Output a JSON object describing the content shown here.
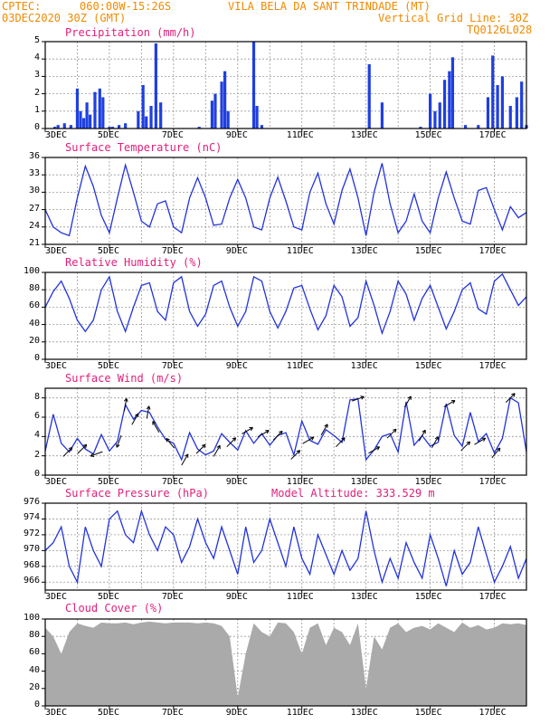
{
  "header": {
    "line1_left": "CPTEC:",
    "line1_coords": "060:00W-15:26S",
    "line1_place": "VILA BELA DA SANT TRINDADE (MT)",
    "line2_left": "03DEC2020 30Z (GMT)",
    "line2_right": "Vertical Grid Line: 30Z",
    "line3_right": "TQ0126L028"
  },
  "x_tick_labels": [
    "3DEC",
    "5DEC",
    "7DEC",
    "9DEC",
    "11DEC",
    "13DEC",
    "15DEC",
    "17DEC"
  ],
  "model_altitude": "Model Altitude: 333.529 m",
  "colors": {
    "line": "#2233dd",
    "bar": "#1f3fe0",
    "cloud": "#aaaaaa",
    "header": "#f08a00",
    "title": "#e0207a"
  },
  "chart_data": [
    {
      "type": "bar",
      "title": "Precipitation (mm/h)",
      "ylim": [
        0,
        5
      ],
      "yticks": [
        0,
        1,
        2,
        3,
        4,
        5
      ],
      "grid": true,
      "x": [
        3.3,
        3.4,
        3.6,
        3.8,
        4.0,
        4.1,
        4.2,
        4.3,
        4.4,
        4.55,
        4.7,
        4.8,
        5.0,
        5.1,
        5.3,
        5.5,
        5.9,
        6.05,
        6.15,
        6.3,
        6.45,
        6.6,
        7.8,
        8.2,
        8.3,
        8.5,
        8.6,
        8.7,
        9.5,
        9.6,
        9.75,
        13.1,
        13.5,
        14.7,
        15.0,
        15.15,
        15.3,
        15.45,
        15.6,
        15.7,
        16.1,
        16.5,
        16.8,
        16.95,
        17.1,
        17.25,
        17.5,
        17.7,
        17.85,
        18.0
      ],
      "values": [
        0.1,
        0.2,
        0.3,
        0.2,
        2.3,
        1.0,
        0.6,
        1.5,
        0.8,
        2.1,
        2.3,
        1.8,
        0.1,
        0.1,
        0.2,
        0.3,
        1.0,
        2.5,
        0.7,
        1.3,
        4.9,
        1.5,
        0.1,
        1.6,
        2.0,
        2.7,
        3.3,
        1.0,
        5.0,
        1.3,
        0.2,
        3.7,
        1.5,
        0.1,
        2.0,
        1.0,
        1.5,
        2.8,
        3.3,
        4.1,
        0.2,
        0.2,
        1.8,
        4.2,
        2.5,
        3.0,
        1.3,
        1.8,
        2.7,
        0.2
      ]
    },
    {
      "type": "line",
      "title": "Surface Temperature (nC)",
      "ylim": [
        21,
        36
      ],
      "yticks": [
        21,
        24,
        27,
        30,
        33,
        36
      ],
      "grid": true,
      "x": [
        3.0,
        3.25,
        3.5,
        3.75,
        4.0,
        4.25,
        4.5,
        4.75,
        5.0,
        5.25,
        5.5,
        5.75,
        6.0,
        6.25,
        6.5,
        6.75,
        7.0,
        7.25,
        7.5,
        7.75,
        8.0,
        8.25,
        8.5,
        8.75,
        9.0,
        9.25,
        9.5,
        9.75,
        10.0,
        10.25,
        10.5,
        10.75,
        11.0,
        11.25,
        11.5,
        11.75,
        12.0,
        12.25,
        12.5,
        12.75,
        13.0,
        13.25,
        13.5,
        13.75,
        14.0,
        14.25,
        14.5,
        14.75,
        15.0,
        15.25,
        15.5,
        15.75,
        16.0,
        16.25,
        16.5,
        16.75,
        17.0,
        17.25,
        17.5,
        17.75,
        18.0
      ],
      "values": [
        27,
        24,
        23,
        22.5,
        29,
        34.5,
        31,
        26,
        23,
        29,
        34.7,
        30,
        25,
        24,
        28,
        28.5,
        24,
        23,
        29,
        32.5,
        29,
        24.3,
        24.5,
        29,
        32.2,
        29,
        24,
        23.5,
        29,
        32.6,
        28.5,
        24,
        23.5,
        30,
        33.3,
        28,
        24.5,
        30.3,
        34,
        29,
        22.5,
        30,
        35,
        28,
        23,
        25,
        29.7,
        25,
        23,
        29,
        33.5,
        29,
        25,
        24.5,
        30.3,
        30.8,
        27,
        23.5,
        27.5,
        25.6,
        26.5
      ]
    },
    {
      "type": "line",
      "title": "Relative Humidity (%)",
      "ylim": [
        0,
        100
      ],
      "yticks": [
        0,
        20,
        40,
        60,
        80,
        100
      ],
      "grid": true,
      "x": [
        3.0,
        3.25,
        3.5,
        3.75,
        4.0,
        4.25,
        4.5,
        4.75,
        5.0,
        5.25,
        5.5,
        5.75,
        6.0,
        6.25,
        6.5,
        6.75,
        7.0,
        7.25,
        7.5,
        7.75,
        8.0,
        8.25,
        8.5,
        8.75,
        9.0,
        9.25,
        9.5,
        9.75,
        10.0,
        10.25,
        10.5,
        10.75,
        11.0,
        11.25,
        11.5,
        11.75,
        12.0,
        12.25,
        12.5,
        12.75,
        13.0,
        13.25,
        13.5,
        13.75,
        14.0,
        14.25,
        14.5,
        14.75,
        15.0,
        15.25,
        15.5,
        15.75,
        16.0,
        16.25,
        16.5,
        16.75,
        17.0,
        17.25,
        17.5,
        17.75,
        18.0
      ],
      "values": [
        60,
        78,
        90,
        70,
        45,
        32,
        45,
        80,
        95,
        55,
        32,
        60,
        85,
        88,
        55,
        45,
        88,
        95,
        55,
        38,
        52,
        85,
        90,
        60,
        38,
        55,
        95,
        90,
        55,
        36,
        55,
        82,
        85,
        58,
        34,
        50,
        85,
        72,
        38,
        48,
        90,
        62,
        30,
        55,
        90,
        75,
        45,
        70,
        85,
        60,
        35,
        55,
        80,
        88,
        58,
        52,
        90,
        98,
        80,
        62,
        72
      ]
    },
    {
      "type": "line",
      "title": "Surface Wind (m/s)",
      "ylim": [
        0,
        9
      ],
      "yticks": [
        0,
        2,
        4,
        6,
        8
      ],
      "grid": true,
      "x": [
        3.0,
        3.25,
        3.5,
        3.75,
        4.0,
        4.25,
        4.5,
        4.75,
        5.0,
        5.25,
        5.5,
        5.75,
        6.0,
        6.25,
        6.5,
        6.75,
        7.0,
        7.25,
        7.5,
        7.75,
        8.0,
        8.25,
        8.5,
        8.75,
        9.0,
        9.25,
        9.5,
        9.75,
        10.0,
        10.25,
        10.5,
        10.75,
        11.0,
        11.25,
        11.5,
        11.75,
        12.0,
        12.25,
        12.5,
        12.75,
        13.0,
        13.25,
        13.5,
        13.75,
        14.0,
        14.25,
        14.5,
        14.75,
        15.0,
        15.25,
        15.5,
        15.75,
        16.0,
        16.25,
        16.5,
        16.75,
        17.0,
        17.25,
        17.5,
        17.75,
        18.0
      ],
      "values": [
        2.5,
        6.3,
        3.3,
        2.4,
        3.8,
        2.7,
        2.2,
        4.2,
        2.5,
        3.5,
        7.3,
        5.8,
        6.7,
        6.5,
        5.0,
        3.7,
        3.3,
        1.6,
        4.4,
        2.7,
        2.1,
        2.5,
        4.3,
        3.4,
        2.6,
        4.6,
        3.3,
        4.3,
        3.1,
        4.1,
        4.4,
        2.1,
        5.6,
        3.6,
        3.2,
        4.7,
        4.1,
        3.4,
        7.8,
        7.9,
        1.6,
        2.6,
        4.0,
        4.3,
        2.4,
        7.6,
        3.1,
        4.1,
        3.0,
        3.4,
        7.4,
        4.1,
        3.0,
        6.5,
        3.5,
        4.3,
        2.3,
        3.8,
        8.0,
        7.5,
        2.4
      ]
    },
    {
      "type": "line",
      "title": "Surface Pressure (hPa)",
      "ylim": [
        965,
        976
      ],
      "yticks": [
        966,
        968,
        970,
        972,
        974,
        976
      ],
      "grid": true,
      "x": [
        3.0,
        3.25,
        3.5,
        3.75,
        4.0,
        4.25,
        4.5,
        4.75,
        5.0,
        5.25,
        5.5,
        5.75,
        6.0,
        6.25,
        6.5,
        6.75,
        7.0,
        7.25,
        7.5,
        7.75,
        8.0,
        8.25,
        8.5,
        8.75,
        9.0,
        9.25,
        9.5,
        9.75,
        10.0,
        10.25,
        10.5,
        10.75,
        11.0,
        11.25,
        11.5,
        11.75,
        12.0,
        12.25,
        12.5,
        12.75,
        13.0,
        13.25,
        13.5,
        13.75,
        14.0,
        14.25,
        14.5,
        14.75,
        15.0,
        15.25,
        15.5,
        15.75,
        16.0,
        16.25,
        16.5,
        16.75,
        17.0,
        17.25,
        17.5,
        17.75,
        18.0
      ],
      "values": [
        970,
        971,
        973,
        968,
        966,
        973,
        970,
        968,
        974,
        975,
        972,
        971,
        975,
        972,
        970,
        973,
        972,
        968.5,
        970.5,
        974,
        971,
        969,
        973,
        970,
        967,
        973,
        968.5,
        970,
        974,
        971,
        968,
        973,
        969,
        967,
        972,
        969.5,
        967,
        970,
        967.5,
        969,
        975,
        970,
        966,
        969,
        966.5,
        971,
        968.5,
        966.5,
        972,
        969,
        965.5,
        970,
        967,
        968.5,
        973,
        969.5,
        966,
        968,
        970.5,
        966.5,
        969
      ]
    },
    {
      "type": "area",
      "title": "Cloud Cover (%)",
      "ylim": [
        0,
        100
      ],
      "yticks": [
        0,
        20,
        40,
        60,
        80,
        100
      ],
      "grid": true,
      "x": [
        3.0,
        3.25,
        3.5,
        3.75,
        4.0,
        4.25,
        4.5,
        4.75,
        5.0,
        5.25,
        5.5,
        5.75,
        6.0,
        6.25,
        6.5,
        6.75,
        7.0,
        7.25,
        7.5,
        7.75,
        8.0,
        8.25,
        8.5,
        8.75,
        9.0,
        9.25,
        9.5,
        9.75,
        10.0,
        10.25,
        10.5,
        10.75,
        11.0,
        11.25,
        11.5,
        11.75,
        12.0,
        12.25,
        12.5,
        12.75,
        13.0,
        13.25,
        13.5,
        13.75,
        14.0,
        14.25,
        14.5,
        14.75,
        15.0,
        15.25,
        15.5,
        15.75,
        16.0,
        16.25,
        16.5,
        16.75,
        17.0,
        17.25,
        17.5,
        17.75,
        18.0
      ],
      "values": [
        90,
        80,
        60,
        85,
        95,
        92,
        90,
        96,
        95,
        95,
        96,
        94,
        96,
        97,
        96,
        95,
        96,
        96,
        96,
        95,
        96,
        95,
        92,
        80,
        10,
        60,
        95,
        85,
        80,
        96,
        95,
        85,
        60,
        90,
        95,
        70,
        90,
        85,
        70,
        95,
        20,
        80,
        65,
        90,
        95,
        85,
        90,
        92,
        88,
        95,
        90,
        85,
        96,
        90,
        93,
        88,
        90,
        95,
        94,
        95,
        93
      ]
    }
  ],
  "wind_arrows": {
    "x": [
      3.7,
      4.15,
      4.6,
      5.3,
      5.5,
      5.8,
      6.2,
      6.45,
      6.9,
      7.35,
      7.85,
      8.35,
      8.8,
      9.3,
      9.8,
      10.25,
      10.8,
      11.2,
      11.7,
      12.2,
      12.75,
      13.25,
      13.8,
      14.3,
      14.75,
      15.15,
      15.6,
      16.1,
      16.55,
      17.05,
      17.5
    ],
    "angle_deg": [
      45,
      45,
      200,
      250,
      80,
      60,
      80,
      120,
      130,
      60,
      45,
      60,
      45,
      30,
      30,
      45,
      45,
      30,
      60,
      45,
      20,
      30,
      45,
      60,
      60,
      60,
      30,
      45,
      30,
      50,
      45
    ]
  }
}
